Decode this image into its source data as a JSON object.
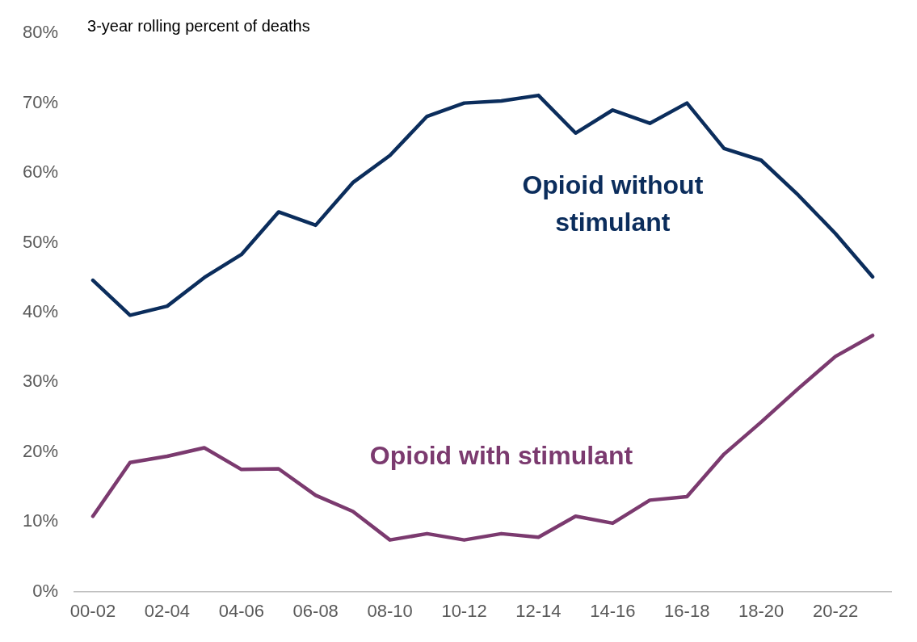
{
  "chart_data": {
    "type": "line",
    "ylabel": "3-year rolling percent of deaths",
    "categories": [
      "00-02",
      null,
      "02-04",
      null,
      "04-06",
      null,
      "06-08",
      null,
      "08-10",
      null,
      "10-12",
      null,
      "12-14",
      null,
      "14-16",
      null,
      "16-18",
      null,
      "18-20",
      null,
      "20-22",
      null
    ],
    "series": [
      {
        "name": "Opioid without stimulant",
        "color": "#0b2d5c",
        "values": [
          44.6,
          39.6,
          40.9,
          45.0,
          48.3,
          54.4,
          52.5,
          58.6,
          62.5,
          68.1,
          70.0,
          70.3,
          71.1,
          65.7,
          69.0,
          67.1,
          70.0,
          63.5,
          61.8,
          56.8,
          51.3,
          45.1
        ]
      },
      {
        "name": "Opioid with stimulant",
        "color": "#7b3a6f",
        "values": [
          10.8,
          18.5,
          19.4,
          20.6,
          17.5,
          17.6,
          13.8,
          11.5,
          7.4,
          8.3,
          7.4,
          8.3,
          7.8,
          10.8,
          9.8,
          13.1,
          13.6,
          19.7,
          24.3,
          29.1,
          33.7,
          36.7
        ]
      }
    ],
    "ylim": [
      0,
      80
    ],
    "yticks": [
      {
        "value": 0,
        "label": "0%"
      },
      {
        "value": 10,
        "label": "10%"
      },
      {
        "value": 20,
        "label": "20%"
      },
      {
        "value": 30,
        "label": "30%"
      },
      {
        "value": 40,
        "label": "40%"
      },
      {
        "value": 50,
        "label": "50%"
      },
      {
        "value": 60,
        "label": "60%"
      },
      {
        "value": 70,
        "label": "70%"
      },
      {
        "value": 80,
        "label": "80%"
      }
    ],
    "grid": false,
    "legend": false,
    "marker": "none",
    "line_style": "solid"
  }
}
